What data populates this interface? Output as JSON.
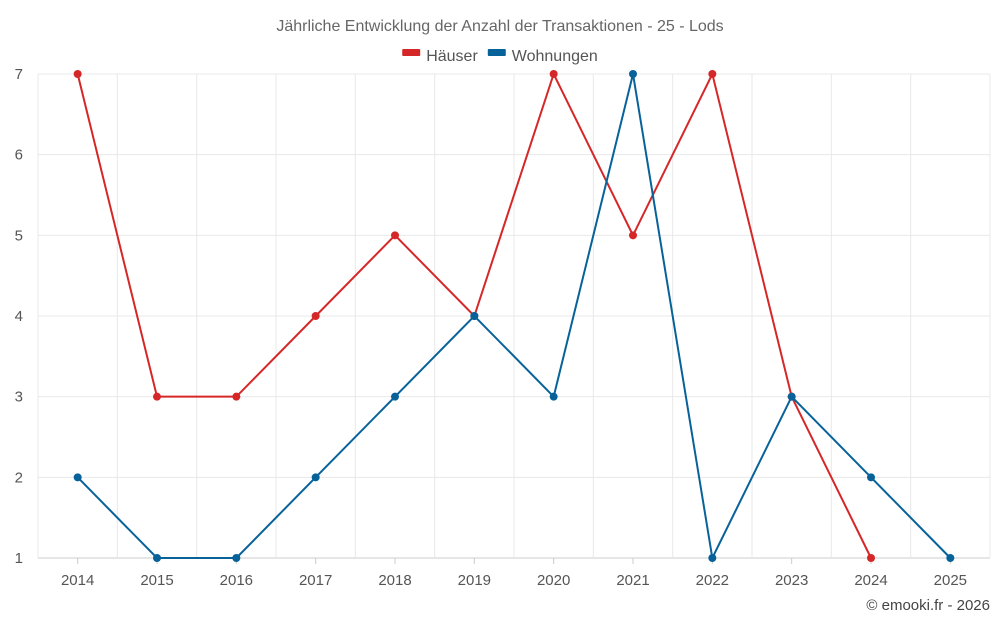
{
  "chart_data": {
    "type": "line",
    "title": "Jährliche Entwicklung der Anzahl der Transaktionen - 25 - Lods",
    "categories": [
      "2014",
      "2015",
      "2016",
      "2017",
      "2018",
      "2019",
      "2020",
      "2021",
      "2022",
      "2023",
      "2024",
      "2025"
    ],
    "series": [
      {
        "name": "Häuser",
        "color": "#d62728",
        "values": [
          7,
          3,
          3,
          4,
          5,
          4,
          7,
          5,
          7,
          3,
          1,
          null
        ]
      },
      {
        "name": "Wohnungen",
        "color": "#07629a",
        "values": [
          2,
          1,
          1,
          2,
          3,
          4,
          3,
          7,
          1,
          3,
          2,
          1
        ]
      }
    ],
    "ylim": [
      1,
      7
    ],
    "yticks": [
      1,
      2,
      3,
      4,
      5,
      6,
      7
    ],
    "xlabel": "",
    "ylabel": "",
    "grid": true,
    "legend_position": "top-center"
  },
  "credit": "© emooki.fr - 2026"
}
